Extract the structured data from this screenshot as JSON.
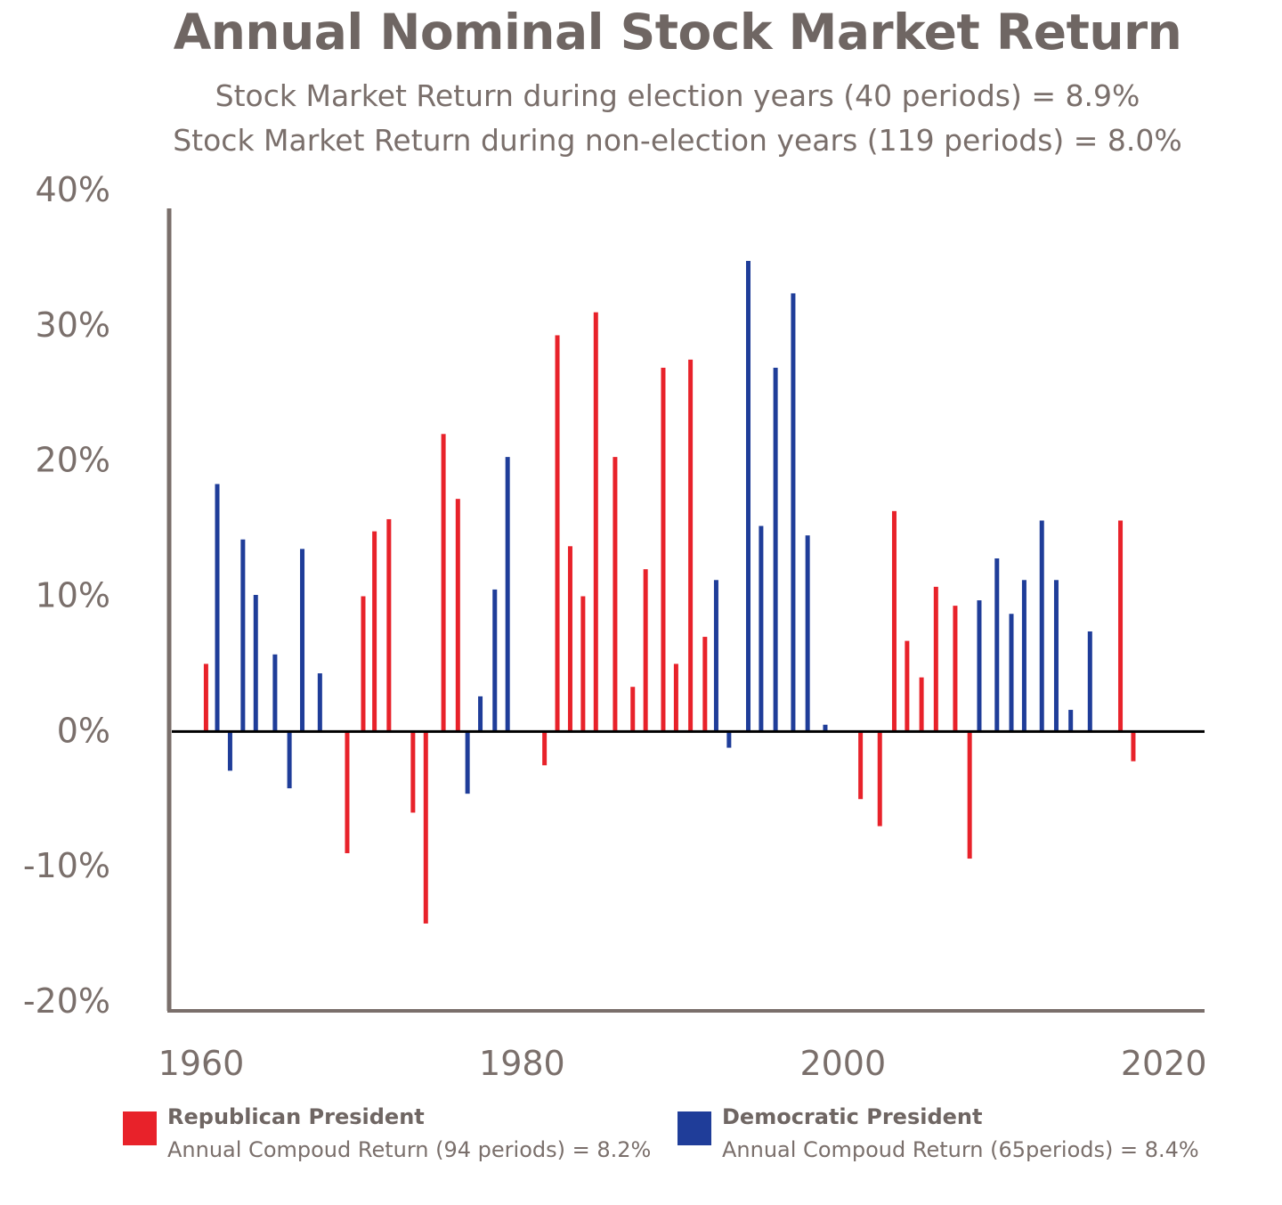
{
  "title": "Annual Nominal Stock Market Return",
  "subtitle_1": "Stock Market Return during election years (40 periods) = 8.9%",
  "subtitle_2": "Stock Market Return during non-election years (119 periods) = 8.0%",
  "colors": {
    "republican": "#e8222a",
    "democratic": "#1f3d99",
    "axis": "#7a6f6b",
    "zero_line": "#000000"
  },
  "legend": {
    "republican": {
      "name": "Republican President",
      "desc": "Annual Compoud Return (94 periods) = 8.2%"
    },
    "democratic": {
      "name": "Democratic President",
      "desc": "Annual Compoud Return (65periods) = 8.4%"
    }
  },
  "chart_data": {
    "type": "bar",
    "xlim": [
      1960,
      2020
    ],
    "ylim": [
      -20,
      40
    ],
    "x_ticks": [
      {
        "value": 1960,
        "label": "1960"
      },
      {
        "value": 1980,
        "label": "1980"
      },
      {
        "value": 2000,
        "label": "2000"
      },
      {
        "value": 2020,
        "label": "2020"
      }
    ],
    "y_ticks": [
      {
        "value": 40,
        "label": "40%"
      },
      {
        "value": 30,
        "label": "30%"
      },
      {
        "value": 20,
        "label": "20%"
      },
      {
        "value": 10,
        "label": "10%"
      },
      {
        "value": 0,
        "label": "0%"
      },
      {
        "value": -10,
        "label": "-10%"
      },
      {
        "value": -20,
        "label": "-20%"
      }
    ],
    "series": [
      {
        "name": "Republican President",
        "color": "#e8222a",
        "points": [
          {
            "x": 1960.3,
            "y": 5.0
          },
          {
            "x": 1969.1,
            "y": -9.0
          },
          {
            "x": 1970.1,
            "y": 10.0
          },
          {
            "x": 1970.8,
            "y": 14.8
          },
          {
            "x": 1971.7,
            "y": 15.7
          },
          {
            "x": 1973.2,
            "y": -6.0
          },
          {
            "x": 1974.0,
            "y": -14.2
          },
          {
            "x": 1975.1,
            "y": 22.0
          },
          {
            "x": 1976.0,
            "y": 17.2
          },
          {
            "x": 1981.4,
            "y": -2.5
          },
          {
            "x": 1982.2,
            "y": 29.3
          },
          {
            "x": 1983.0,
            "y": 13.7
          },
          {
            "x": 1983.8,
            "y": 10.0
          },
          {
            "x": 1984.6,
            "y": 31.0
          },
          {
            "x": 1985.8,
            "y": 20.3
          },
          {
            "x": 1986.9,
            "y": 3.3
          },
          {
            "x": 1987.7,
            "y": 12.0
          },
          {
            "x": 1988.8,
            "y": 26.9
          },
          {
            "x": 1989.6,
            "y": 5.0
          },
          {
            "x": 1990.5,
            "y": 27.5
          },
          {
            "x": 1991.4,
            "y": 7.0
          },
          {
            "x": 2001.1,
            "y": -5.0
          },
          {
            "x": 2002.3,
            "y": -7.0
          },
          {
            "x": 2003.2,
            "y": 16.3
          },
          {
            "x": 2004.0,
            "y": 6.7
          },
          {
            "x": 2004.9,
            "y": 4.0
          },
          {
            "x": 2005.8,
            "y": 10.7
          },
          {
            "x": 2007.0,
            "y": 9.3
          },
          {
            "x": 2007.9,
            "y": -9.4
          },
          {
            "x": 2017.3,
            "y": 15.6
          },
          {
            "x": 2018.1,
            "y": -2.2
          }
        ]
      },
      {
        "name": "Democratic President",
        "color": "#1f3d99",
        "points": [
          {
            "x": 1961.0,
            "y": 18.3
          },
          {
            "x": 1961.8,
            "y": -2.9
          },
          {
            "x": 1962.6,
            "y": 14.2
          },
          {
            "x": 1963.4,
            "y": 10.1
          },
          {
            "x": 1964.6,
            "y": 5.7
          },
          {
            "x": 1965.5,
            "y": -4.2
          },
          {
            "x": 1966.3,
            "y": 13.5
          },
          {
            "x": 1967.4,
            "y": 4.3
          },
          {
            "x": 1976.6,
            "y": -4.6
          },
          {
            "x": 1977.4,
            "y": 2.6
          },
          {
            "x": 1978.3,
            "y": 10.5
          },
          {
            "x": 1979.1,
            "y": 20.3
          },
          {
            "x": 1992.1,
            "y": 11.2
          },
          {
            "x": 1992.9,
            "y": -1.2
          },
          {
            "x": 1994.1,
            "y": 34.8
          },
          {
            "x": 1994.9,
            "y": 15.2
          },
          {
            "x": 1995.8,
            "y": 26.9
          },
          {
            "x": 1996.9,
            "y": 32.4
          },
          {
            "x": 1997.8,
            "y": 14.5
          },
          {
            "x": 1998.9,
            "y": 0.5
          },
          {
            "x": 2008.5,
            "y": 9.7
          },
          {
            "x": 2009.6,
            "y": 12.8
          },
          {
            "x": 2010.5,
            "y": 8.7
          },
          {
            "x": 2011.3,
            "y": 11.2
          },
          {
            "x": 2012.4,
            "y": 15.6
          },
          {
            "x": 2013.3,
            "y": 11.2
          },
          {
            "x": 2014.2,
            "y": 1.6
          },
          {
            "x": 2015.4,
            "y": 7.4
          }
        ]
      }
    ]
  }
}
